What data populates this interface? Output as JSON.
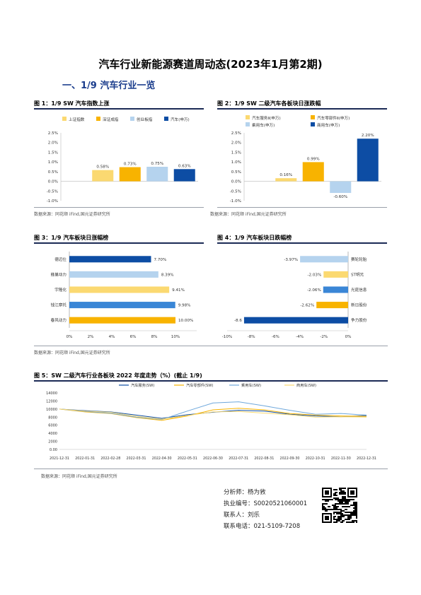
{
  "page": {
    "title": "汽车行业新能源赛道周动态(2023年1月第2期)",
    "section": "一、1/9 汽车行业一览"
  },
  "fig1": {
    "title": "图 1：1/9 SW 汽车指数上涨",
    "source": "数据来源：同花顺 iFind,国元证券研究所",
    "chart_data": {
      "type": "bar",
      "categories": [
        "上证指数",
        "深证成指",
        "创业板指",
        "汽车(申万)"
      ],
      "values": [
        0.58,
        0.73,
        0.75,
        0.63
      ],
      "value_labels": [
        "0.58%",
        "0.73%",
        "0.75%",
        "0.63%"
      ],
      "legend": [
        "上证指数",
        "深证成指",
        "创业板指",
        "汽车(申万)"
      ],
      "colors": [
        "#fbd971",
        "#f8b300",
        "#b5d3ee",
        "#0d4da4"
      ],
      "ylim": [
        -1.0,
        2.5
      ],
      "yticks": [
        "2.5%",
        "2.0%",
        "1.5%",
        "1.0%",
        "0.5%",
        "0.0%",
        "-0.5%",
        "-1.0%"
      ]
    }
  },
  "fig2": {
    "title": "图 2：1/9 SW 二级汽车各板块日涨跌幅",
    "source": "数据来源：同花顺 iFind,国元证券研究所",
    "chart_data": {
      "type": "bar",
      "categories": [
        "汽车服务Ⅱ(申万)",
        "汽车零部件Ⅱ(申万)",
        "乘用车(申万)",
        "商用车(申万)"
      ],
      "values": [
        0.16,
        0.99,
        -0.6,
        2.2
      ],
      "value_labels": [
        "0.16%",
        "0.99%",
        "-0.60%",
        "2.20%"
      ],
      "legend": [
        "汽车服务Ⅱ(申万)",
        "汽车零部件Ⅱ(申万)",
        "乘用车(申万)",
        "商用车(申万)"
      ],
      "colors": [
        "#fbd971",
        "#f8b300",
        "#b5d3ee",
        "#0d4da4"
      ],
      "ylim": [
        -1.0,
        2.5
      ],
      "yticks": [
        "2.5%",
        "2.0%",
        "1.5%",
        "1.0%",
        "0.5%",
        "0.0%",
        "-0.5%",
        "-1.0%"
      ]
    }
  },
  "fig3": {
    "title": "图 3：1/9 汽车板块日涨幅榜",
    "source": "数据来源：同花顺 iFind,国元证券研究所",
    "chart_data": {
      "type": "bar",
      "orientation": "horizontal",
      "categories": [
        "德迈仕",
        "蜂巢动力",
        "宇隆化",
        "钱江摩托",
        "春风动力"
      ],
      "values": [
        7.7,
        8.39,
        9.41,
        9.98,
        10.0
      ],
      "value_labels": [
        "7.70%",
        "8.39%",
        "9.41%",
        "9.98%",
        "10.00%"
      ],
      "colors": [
        "#0d4da4",
        "#b5d3ee",
        "#fbd971",
        "#3a86d6",
        "#f8b300"
      ],
      "xlim": [
        0,
        12
      ],
      "xticks": [
        "0%",
        "2%",
        "4%",
        "6%",
        "8%",
        "10%"
      ]
    }
  },
  "fig4": {
    "title": "图 4：1/9 汽车板块日跌幅榜",
    "chart_data": {
      "type": "bar",
      "orientation": "horizontal",
      "categories": [
        "赛轮轮胎",
        "ST明光",
        "光庭信息",
        "新日股份",
        "争力股份"
      ],
      "values": [
        -3.97,
        -2.03,
        -2.06,
        -2.62,
        -8.6
      ],
      "value_labels": [
        "-3.97%",
        "-2.03%",
        "-2.06%",
        "-2.62%",
        "-8.6"
      ],
      "colors": [
        "#b5d3ee",
        "#fbd971",
        "#3a86d6",
        "#f8b300",
        "#0d4da4"
      ],
      "xlim": [
        -10,
        0
      ],
      "xticks": [
        "-10%",
        "-8%",
        "-6%",
        "-4%",
        "-2%",
        "0%"
      ]
    }
  },
  "fig5": {
    "title": "图 5：SW 二级汽车行业各板块 2022 年度走势（%）(截止 1/9)",
    "source": "数据来源：同花顺 iFind,国元证券研究所",
    "chart_data": {
      "type": "line",
      "legend": [
        "汽车服务(SW)",
        "汽车零部件(SW)",
        "乘用车(SW)",
        "商用车(SW)"
      ],
      "colors": [
        "#0d4da4",
        "#f8b300",
        "#6fa8dc",
        "#fbd971"
      ],
      "yticks": [
        "14000",
        "12000",
        "10000",
        "8000",
        "6000",
        "4000",
        "2000",
        "0.00"
      ],
      "xticks": [
        "2021-12-31",
        "2022-01-31",
        "2022-02-28",
        "2022-03-31",
        "2022-04-30",
        "2022-05-31",
        "2022-06-30",
        "2022-07-31",
        "2022-08-31",
        "2022-09-30",
        "2022-10-31",
        "2022-11-30",
        "2022-12-31"
      ],
      "ylim": [
        0,
        14000
      ],
      "series": [
        {
          "name": "汽车服务(SW)",
          "values": [
            10000,
            9600,
            9300,
            8500,
            7700,
            8600,
            9200,
            9700,
            9500,
            8700,
            8300,
            8100,
            8400
          ]
        },
        {
          "name": "汽车零部件(SW)",
          "values": [
            10000,
            9300,
            8900,
            7900,
            7200,
            8300,
            9800,
            10200,
            9800,
            8900,
            8500,
            8300,
            8200
          ]
        },
        {
          "name": "乘用车(SW)",
          "values": [
            10000,
            9400,
            9000,
            8000,
            7400,
            9500,
            11500,
            11800,
            10800,
            9700,
            8700,
            8900,
            8500
          ]
        },
        {
          "name": "商用车(SW)",
          "values": [
            10000,
            9500,
            9200,
            8200,
            7500,
            8400,
            9300,
            9400,
            9000,
            8600,
            8000,
            8100,
            8000
          ]
        }
      ]
    }
  },
  "analyst": {
    "name_line": "分析师：杨为敩",
    "cert_line": "执业编号：S0020521060001",
    "contact_line": "联系人：刘乐",
    "phone_line": "联系电话：021-5109-7208"
  }
}
